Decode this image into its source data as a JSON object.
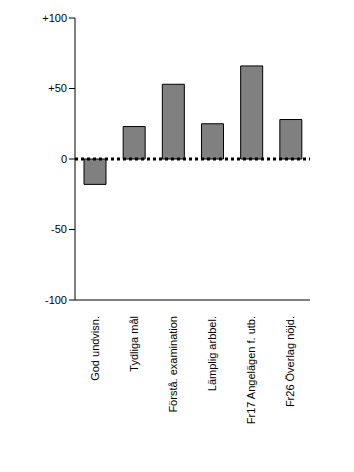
{
  "chart_data": {
    "type": "bar",
    "categories": [
      "God undvisn.",
      "Tydliga mål",
      "Förstå. examination",
      "Lämplig arbbel.",
      "Fr17 Angelägen f. utb.",
      "Fr26 Överlag nöjd."
    ],
    "values": [
      -18,
      23,
      53,
      25,
      66,
      28
    ],
    "color": "#808080",
    "ylim": [
      -100,
      100
    ],
    "yticks": [
      {
        "value": -100,
        "label": "-100"
      },
      -50,
      0,
      {
        "value": 50,
        "label": "+50"
      },
      {
        "value": 100,
        "label": "+100"
      }
    ],
    "grid": false
  }
}
